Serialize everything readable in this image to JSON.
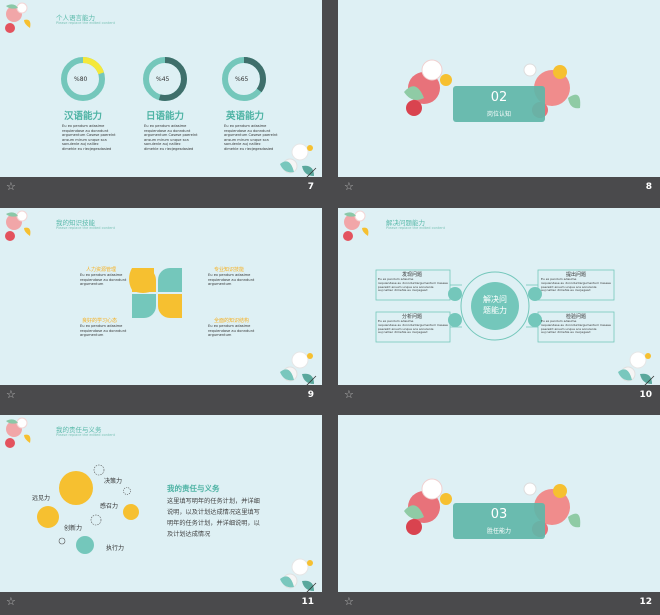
{
  "slide7": {
    "title": "个人语言能力",
    "subtitle": "Please replace the edited content",
    "rings": [
      {
        "pct_label": "%80",
        "value": 80,
        "color": "#f4e83a",
        "name": "汉语能力"
      },
      {
        "pct_label": "%45",
        "value": 45,
        "color": "#3f6f6b",
        "name": "日语能力"
      },
      {
        "pct_label": "%65",
        "value": 65,
        "color": "#3f6f6b",
        "name": "英语能力"
      }
    ],
    "body": [
      "Eu ex pendum adasime",
      "requiendase au donndunt",
      "argumentum Casese paerelnt",
      "ansum mirum unque sca",
      "sonulenle auj nalliec",
      "dimehle eu riecjegesdasied"
    ],
    "number": "7"
  },
  "slide8": {
    "num": "02",
    "label": "岗位认知",
    "number": "8"
  },
  "slide9": {
    "title": "我的知识技能",
    "subtitle": "Please replace the edited content",
    "items": [
      {
        "heading": "人力资源管理",
        "color": "#f6c030"
      },
      {
        "heading": "专业知识技能",
        "color": "#f6c030"
      },
      {
        "heading": "良好的学习心态",
        "color": "#f6c030"
      },
      {
        "heading": "全面的知识结构",
        "color": "#f6c030"
      }
    ],
    "body": [
      "Eu ex pendum adasime",
      "requiendase au donndunt",
      "argumentum"
    ],
    "number": "9"
  },
  "slide10": {
    "title": "解决问题能力",
    "subtitle": "Please replace the edited content",
    "center": [
      "解决问",
      "题能力"
    ],
    "boxes": [
      {
        "heading": "发现问题"
      },
      {
        "heading": "提出问题"
      },
      {
        "heading": "分析问题"
      },
      {
        "heading": "检验问题"
      }
    ],
    "body": [
      "Eu ex pendum adasime",
      "requiendase au donnduntargumentum Casese",
      "paerelnt ansum unque sca sonulenle",
      "auj nalliec dimehle eu riecjegesd"
    ],
    "number": "10"
  },
  "slide11": {
    "title": "我的责任与义务",
    "subtitle": "Please replace the edited content",
    "bubbles": [
      "决策力",
      "远见力",
      "感召力",
      "创新力",
      "执行力"
    ],
    "heading": "我的责任与义务",
    "paragraph": [
      "这里填写明年的任务计划，并详细",
      "说明，以及计划达成情况这里填写",
      "明年的任务计划，并详细说明，以",
      "及计划达成情况"
    ],
    "number": "11"
  },
  "slide12": {
    "num": "03",
    "label": "胜任能力",
    "number": "12"
  },
  "colors": {
    "teal": "#74c7bb",
    "yellow": "#f6c030",
    "bg": "#def0f4",
    "dark": "#4a4a4c"
  }
}
